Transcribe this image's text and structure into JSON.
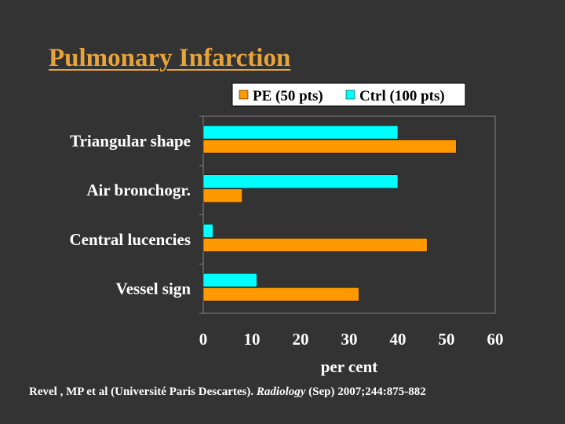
{
  "title": "Pulmonary Infarction",
  "footer": {
    "prefix": "Revel , MP et al (Université Paris Descartes).  ",
    "journal": "Radiology",
    "suffix": " (Sep) 2007;244:875-882"
  },
  "colors": {
    "background": "#333333",
    "title": "#E8A33A",
    "pe": "#FF9900",
    "ctrl": "#00FFFF",
    "plot_bg": "#333333",
    "axis": "#FFFFFF"
  },
  "chart_data": {
    "type": "bar",
    "orientation": "horizontal",
    "categories": [
      "Triangular shape",
      "Air bronchogr.",
      "Central lucencies",
      "Vessel sign"
    ],
    "series": [
      {
        "name": "PE (50 pts)",
        "values": [
          52,
          8,
          46,
          32
        ]
      },
      {
        "name": "Ctrl (100 pts)",
        "values": [
          40,
          40,
          2,
          11
        ]
      }
    ],
    "xlabel": "per cent",
    "ylabel": "",
    "xlim": [
      0,
      60
    ],
    "xticks": [
      0,
      10,
      20,
      30,
      40,
      50,
      60
    ],
    "grid": false,
    "legend": "top"
  }
}
